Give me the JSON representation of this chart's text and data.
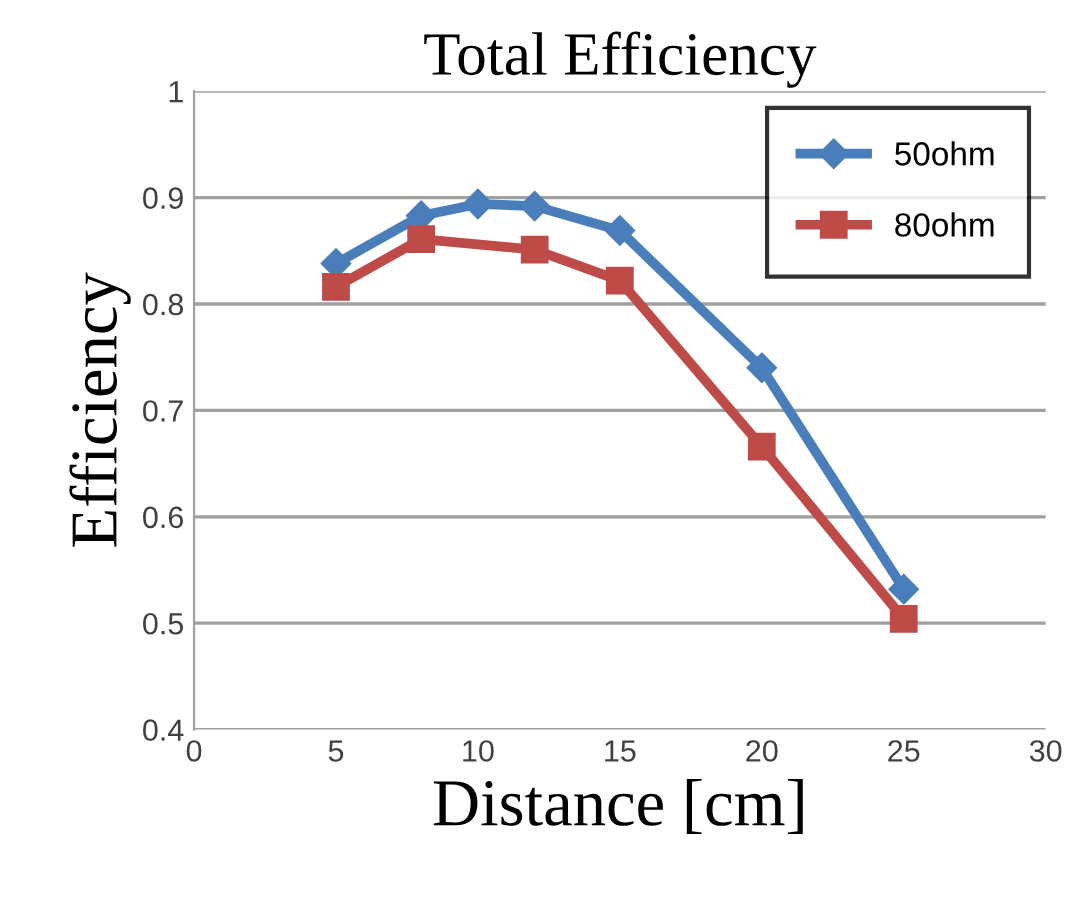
{
  "chart_data": {
    "type": "line",
    "title": "Total Efficiency",
    "xlabel": "Distance [cm]",
    "ylabel": "Efficiency",
    "series": [
      {
        "name": "50ohm",
        "color": "#4a7ebb",
        "marker": "diamond",
        "x": [
          5,
          8,
          10,
          12,
          15,
          20,
          25
        ],
        "values": [
          0.838,
          0.883,
          0.894,
          0.892,
          0.869,
          0.74,
          0.532
        ]
      },
      {
        "name": "80ohm",
        "color": "#be4b48",
        "marker": "square",
        "x": [
          5,
          8,
          12,
          15,
          20,
          25
        ],
        "values": [
          0.816,
          0.861,
          0.851,
          0.822,
          0.666,
          0.504
        ]
      }
    ],
    "xlim": [
      0,
      30
    ],
    "xticks": [
      0,
      5,
      10,
      15,
      20,
      25,
      30
    ],
    "ylim": [
      0.4,
      1
    ],
    "yticks": [
      0.4,
      0.5,
      0.6,
      0.7,
      0.8,
      0.9,
      1
    ],
    "grid": "y",
    "legend": "top right",
    "line_style": "solid"
  }
}
